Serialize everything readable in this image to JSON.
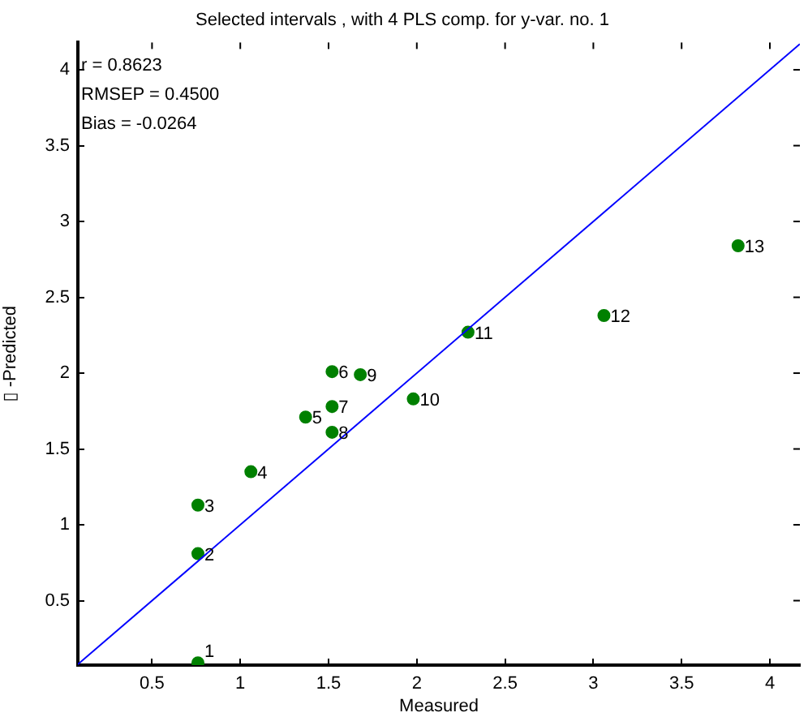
{
  "chart_data": {
    "type": "scatter",
    "title": "Selected intervals , with 4 PLS comp. for y-var. no. 1",
    "xlabel": "Measured",
    "ylabel": "▯ -Predicted",
    "annotations": [
      "r = 0.8623",
      "RMSEP = 0.4500",
      "Bias = -0.0264",
      {
        "text": "1",
        "x": 0.76,
        "y": 0.09
      },
      {
        "text": "2",
        "x": 0.76,
        "y": 0.81
      },
      {
        "text": "3",
        "x": 0.76,
        "y": 1.13
      },
      {
        "text": "4",
        "x": 1.06,
        "y": 1.35
      },
      {
        "text": "5",
        "x": 1.37,
        "y": 1.71
      },
      {
        "text": "6",
        "x": 1.52,
        "y": 2.01
      },
      {
        "text": "7",
        "x": 1.52,
        "y": 1.78
      },
      {
        "text": "8",
        "x": 1.52,
        "y": 1.61
      },
      {
        "text": "9",
        "x": 1.68,
        "y": 1.99
      },
      {
        "text": "10",
        "x": 1.98,
        "y": 1.83
      },
      {
        "text": "11",
        "x": 2.29,
        "y": 2.27
      },
      {
        "text": "12",
        "x": 3.06,
        "y": 2.38
      },
      {
        "text": "13",
        "x": 3.82,
        "y": 2.84
      }
    ],
    "xlim": [
      0.08,
      4.17
    ],
    "ylim": [
      0.075,
      4.18
    ],
    "xticks": [
      0.5,
      1,
      1.5,
      2,
      2.5,
      3,
      3.5,
      4
    ],
    "yticks": [
      0.5,
      1,
      1.5,
      2,
      2.5,
      3,
      3.5,
      4
    ],
    "grid": false,
    "legend": false,
    "marker": "circle",
    "series": [
      {
        "type": "line",
        "color": "#0000ff",
        "x": [
          0.08,
          4.17
        ],
        "values": [
          0.08,
          4.17
        ],
        "marker": "none"
      },
      {
        "type": "scatter",
        "color": "#008000",
        "x": [
          0.76,
          0.76,
          0.76,
          1.06,
          1.37,
          1.52,
          1.52,
          1.52,
          1.68,
          1.98,
          2.29,
          3.06,
          3.82
        ],
        "values": [
          0.09,
          0.81,
          1.13,
          1.35,
          1.71,
          2.01,
          1.78,
          1.61,
          1.99,
          1.83,
          2.27,
          2.38,
          2.84
        ]
      }
    ]
  }
}
